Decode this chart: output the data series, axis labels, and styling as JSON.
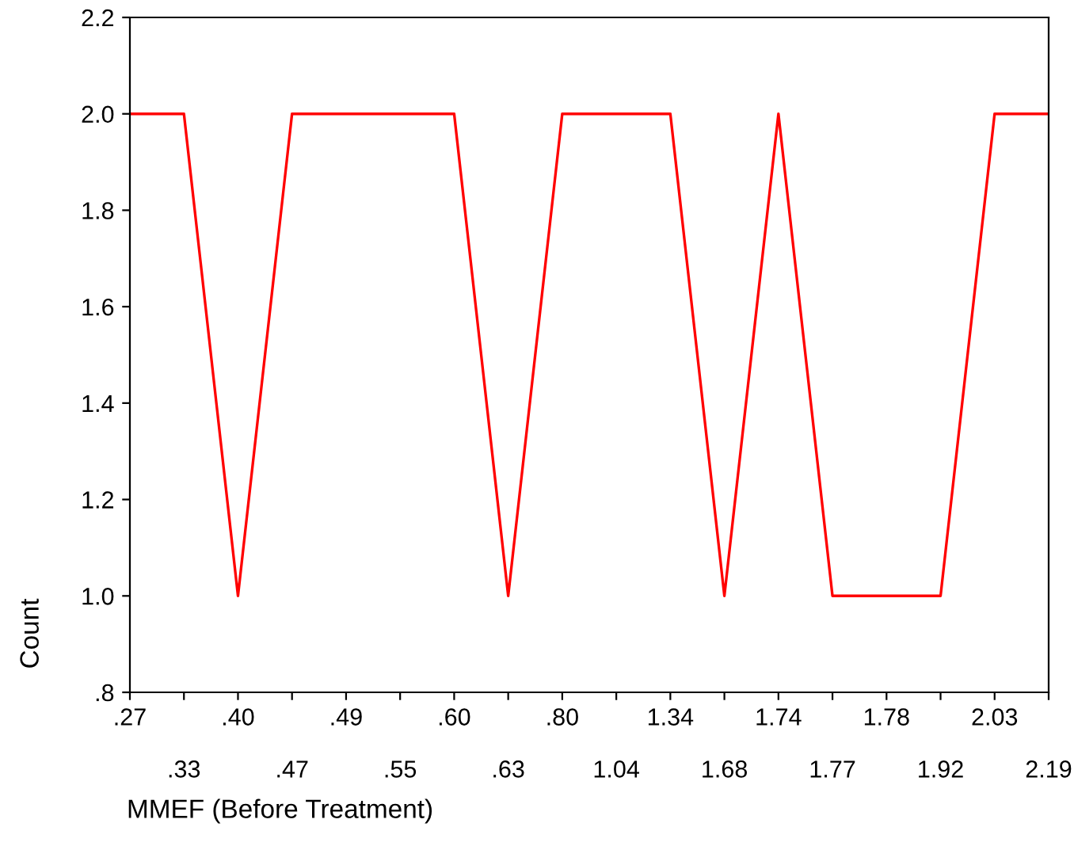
{
  "chart_data": {
    "type": "line",
    "xlabel": "MMEF (Before Treatment)",
    "ylabel": "Count",
    "categories": [
      ".27",
      ".33",
      ".40",
      ".47",
      ".49",
      ".55",
      ".60",
      ".63",
      ".80",
      "1.04",
      "1.34",
      "1.68",
      "1.74",
      "1.77",
      "1.78",
      "1.92",
      "2.03",
      "2.19"
    ],
    "series": [
      {
        "color": "#ff0000",
        "values": [
          2,
          2,
          1,
          2,
          2,
          2,
          2,
          1,
          2,
          2,
          2,
          1,
          2,
          1,
          1,
          1,
          2,
          2
        ]
      }
    ],
    "ylim": [
      0.8,
      2.2
    ],
    "yticks": [
      {
        "value": 0.8,
        "label": ".8"
      },
      {
        "value": 1.0,
        "label": "1.0"
      },
      {
        "value": 1.2,
        "label": "1.2"
      },
      {
        "value": 1.4,
        "label": "1.4"
      },
      {
        "value": 1.6,
        "label": "1.6"
      },
      {
        "value": 1.8,
        "label": "1.8"
      },
      {
        "value": 2.0,
        "label": "2.0"
      },
      {
        "value": 2.2,
        "label": "2.2"
      }
    ],
    "grid": false,
    "marker": "none",
    "line_style": "solid"
  }
}
